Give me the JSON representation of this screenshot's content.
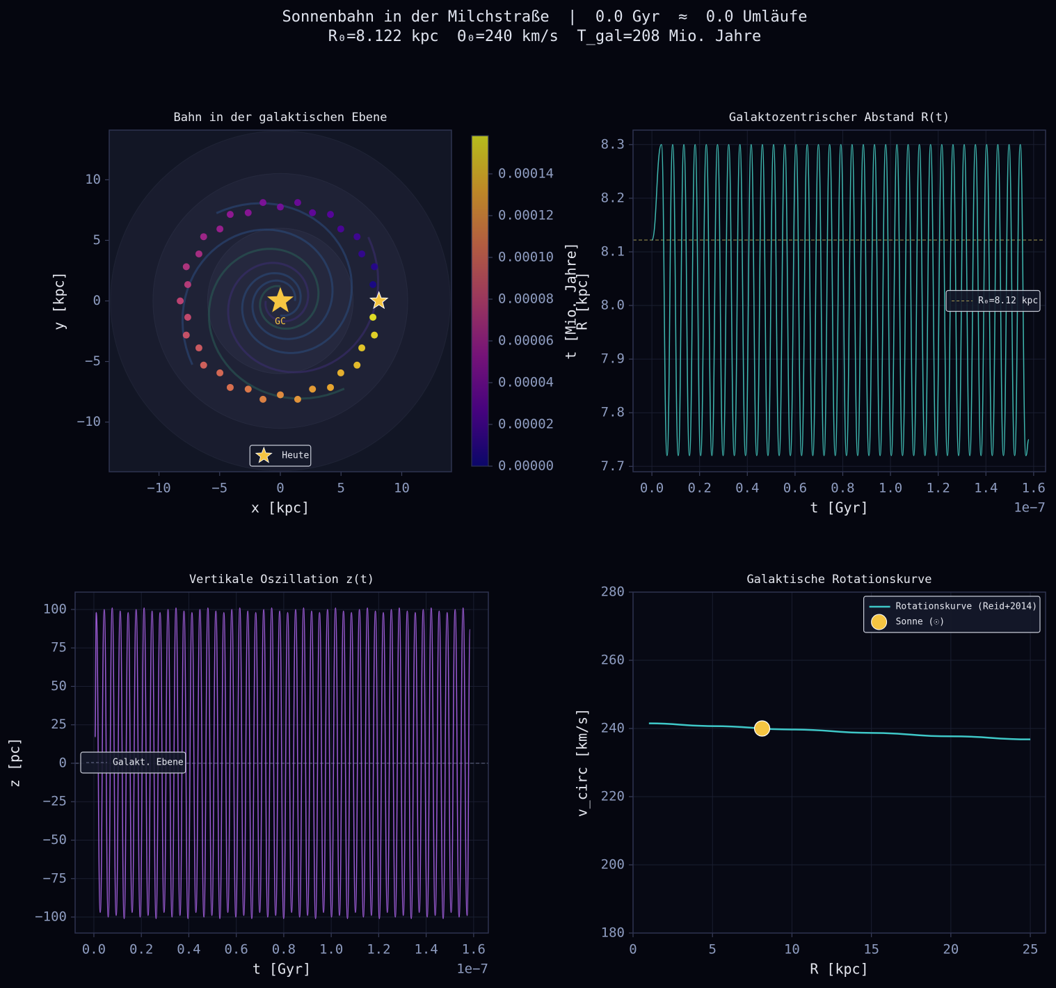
{
  "figure": {
    "title": "Sonnenbahn in der Milchstraße  |  0.0 Gyr  ≈  0.0 Umläufe",
    "subtitle": "R₀=8.122 kpc  Θ₀=240 km/s  T_gal=208 Mio. Jahre"
  },
  "chart_data": [
    {
      "type": "scatter",
      "title": "Bahn in der galaktischen Ebene",
      "xlabel": "x [kpc]",
      "ylabel": "y [kpc]",
      "xlim": [
        -14.1,
        14.1
      ],
      "ylim": [
        -14.1,
        14.1
      ],
      "xticks": [
        {
          "value": -10,
          "label": "−10"
        },
        {
          "value": -5,
          "label": "−5"
        },
        0,
        5,
        10
      ],
      "yticks": [
        {
          "value": -10,
          "label": "−10"
        },
        {
          "value": -5,
          "label": "−5"
        },
        0,
        5,
        10
      ],
      "grid": false,
      "series": [
        {
          "x": [
            8.25,
            7.63,
            7.75,
            6.71,
            6.32,
            4.98,
            4.13,
            2.65,
            1.43,
            0,
            -1.43,
            -2.65,
            -4.13,
            -4.98,
            -6.32,
            -6.71,
            -7.75,
            -7.63,
            -8.25,
            -7.63,
            -7.75,
            -6.71,
            -6.32,
            -4.98,
            -4.13,
            -2.65,
            -1.43,
            0,
            1.43,
            2.65,
            4.13,
            4.98,
            6.32,
            6.71,
            7.75,
            7.63
          ],
          "values": [
            0,
            1.35,
            2.82,
            3.88,
            5.3,
            5.94,
            7.14,
            7.28,
            8.12,
            7.75,
            8.12,
            7.28,
            7.14,
            5.94,
            5.3,
            3.88,
            2.82,
            1.35,
            0,
            -1.35,
            -2.82,
            -3.88,
            -5.3,
            -5.94,
            -7.14,
            -7.28,
            -8.12,
            -7.75,
            -8.12,
            -7.28,
            -7.14,
            -5.94,
            -5.3,
            -3.88,
            -2.82,
            -1.35
          ],
          "c": [
            0,
            4.4e-06,
            8.8e-06,
            1.32e-05,
            1.76e-05,
            2.2e-05,
            2.64e-05,
            3.08e-05,
            3.52e-05,
            3.96e-05,
            4.4e-05,
            4.84e-05,
            5.28e-05,
            5.72e-05,
            6.16e-05,
            6.6e-05,
            7.04e-05,
            7.48e-05,
            7.92e-05,
            8.36e-05,
            8.8e-05,
            9.24e-05,
            9.68e-05,
            0.0001012,
            0.0001056,
            0.00011,
            0.0001144,
            0.0001188,
            0.0001232,
            0.0001276,
            0.000132,
            0.0001364,
            0.0001408,
            0.0001452,
            0.0001496,
            0.000154
          ]
        }
      ],
      "colorbar": {
        "cmap": "plasma",
        "clim": [
          0,
          0.0001583
        ],
        "ticks": [
          {
            "value": 0,
            "label": "0.00000"
          },
          {
            "value": 2e-05,
            "label": "0.00002"
          },
          {
            "value": 4e-05,
            "label": "0.00004"
          },
          {
            "value": 6e-05,
            "label": "0.00006"
          },
          {
            "value": 8e-05,
            "label": "0.00008"
          },
          {
            "value": 0.0001,
            "label": "0.00010"
          },
          {
            "value": 0.00012,
            "label": "0.00012"
          },
          {
            "value": 0.00014,
            "label": "0.00014"
          }
        ]
      },
      "markers": [
        {
          "name": "Heute",
          "x": 8.122,
          "y": 0,
          "color": "#f5c542"
        }
      ],
      "annotations": [
        {
          "text": "GC",
          "x": 0,
          "y": 0,
          "color": "#f5c542"
        }
      ],
      "legend": "lower center"
    },
    {
      "type": "line",
      "title": "Galaktozentrischer Abstand R(t)",
      "xlabel": "t [Gyr]",
      "ylabel": "R  [kpc]",
      "ylabel_overlay": "t [Mio. Jahre]",
      "x_offset_label": "1e−7",
      "xlim": [
        -7.9e-09,
        1.65e-07
      ],
      "ylim": [
        7.69,
        8.327
      ],
      "xticks": [
        {
          "value": 0,
          "label": "0.0"
        },
        {
          "value": 2e-08,
          "label": "0.2"
        },
        {
          "value": 4e-08,
          "label": "0.4"
        },
        {
          "value": 6e-08,
          "label": "0.6"
        },
        {
          "value": 8e-08,
          "label": "0.8"
        },
        {
          "value": 1e-07,
          "label": "1.0"
        },
        {
          "value": 1.2e-07,
          "label": "1.2"
        },
        {
          "value": 1.4e-07,
          "label": "1.4"
        },
        {
          "value": 1.6e-07,
          "label": "1.6"
        }
      ],
      "yticks": [
        7.7,
        7.8,
        7.9,
        {
          "value": 8,
          "label": "8.0"
        },
        8.1,
        8.2,
        8.3
      ],
      "grid": true,
      "series": [
        {
          "color": "#3fb8b0",
          "x": [
            0,
            4e-09,
            6.35e-09,
            8.7e-09,
            1.105e-08,
            1.34e-08,
            1.575e-08,
            1.81e-08,
            2.045e-08,
            2.28e-08,
            2.515e-08,
            2.75e-08,
            2.985e-08,
            3.22e-08,
            3.455e-08,
            3.69e-08,
            3.925e-08,
            4.16e-08,
            4.395e-08,
            4.63e-08,
            4.865e-08,
            5.1e-08,
            5.335e-08,
            5.57e-08,
            5.805e-08,
            6.04e-08,
            6.275e-08,
            6.51e-08,
            6.745e-08,
            6.98e-08,
            7.215e-08,
            7.45e-08,
            7.685e-08,
            7.92e-08,
            8.155e-08,
            8.39e-08,
            8.625e-08,
            8.86e-08,
            9.095e-08,
            9.33e-08,
            9.565e-08,
            9.8e-08,
            1.0035e-07,
            1.027e-07,
            1.0505e-07,
            1.074e-07,
            1.0975e-07,
            1.121e-07,
            1.1445e-07,
            1.168e-07,
            1.1915e-07,
            1.215e-07,
            1.2385e-07,
            1.262e-07,
            1.2855e-07,
            1.309e-07,
            1.3325e-07,
            1.356e-07,
            1.3795e-07,
            1.403e-07,
            1.4265e-07,
            1.45e-07,
            1.4735e-07,
            1.497e-07,
            1.5205e-07,
            1.544e-07,
            1.5675e-07,
            1.58e-07
          ],
          "values": [
            8.122,
            8.3,
            7.72,
            8.3,
            7.72,
            8.3,
            7.72,
            8.3,
            7.72,
            8.3,
            7.72,
            8.3,
            7.72,
            8.3,
            7.72,
            8.3,
            7.72,
            8.3,
            7.72,
            8.3,
            7.72,
            8.3,
            7.72,
            8.3,
            7.72,
            8.3,
            7.72,
            8.3,
            7.72,
            8.3,
            7.72,
            8.3,
            7.72,
            8.3,
            7.72,
            8.3,
            7.72,
            8.3,
            7.72,
            8.3,
            7.72,
            8.3,
            7.72,
            8.3,
            7.72,
            8.3,
            7.72,
            8.3,
            7.72,
            8.3,
            7.72,
            8.3,
            7.72,
            8.3,
            7.72,
            8.3,
            7.72,
            8.3,
            7.72,
            8.3,
            7.72,
            8.3,
            7.72,
            8.3,
            7.72,
            8.3,
            7.72,
            7.75
          ]
        }
      ],
      "hlines": [
        {
          "name": "R₀=8.12 kpc",
          "value": 8.122,
          "color": "#a69a52"
        }
      ],
      "legend": "center right"
    },
    {
      "type": "line",
      "title": "Vertikale Oszillation z(t)",
      "xlabel": "t [Gyr]",
      "ylabel": "z  [pc]",
      "x_offset_label": "1e−7",
      "xlim": [
        -7.9e-09,
        1.662e-07
      ],
      "ylim": [
        -110.4,
        111.3
      ],
      "xticks": [
        {
          "value": 0,
          "label": "0.0"
        },
        {
          "value": 2e-08,
          "label": "0.2"
        },
        {
          "value": 4e-08,
          "label": "0.4"
        },
        {
          "value": 6e-08,
          "label": "0.6"
        },
        {
          "value": 8e-08,
          "label": "0.8"
        },
        {
          "value": 1e-07,
          "label": "1.0"
        },
        {
          "value": 1.2e-07,
          "label": "1.2"
        },
        {
          "value": 1.4e-07,
          "label": "1.4"
        },
        {
          "value": 1.6e-07,
          "label": "1.6"
        }
      ],
      "yticks": [
        {
          "value": -100,
          "label": "−100"
        },
        {
          "value": -75,
          "label": "−75"
        },
        {
          "value": -50,
          "label": "−50"
        },
        {
          "value": -25,
          "label": "−25"
        },
        0,
        25,
        50,
        75,
        100
      ],
      "grid": true,
      "series": [
        {
          "color": "#9b5bd4",
          "x": [
            5e-10,
            1e-09,
            2.68e-09,
            4.36e-09,
            6.04e-09,
            7.72e-09,
            9.4e-09,
            1.108e-08,
            1.276e-08,
            1.444e-08,
            1.612e-08,
            1.78e-08,
            1.948e-08,
            2.116e-08,
            2.284e-08,
            2.452e-08,
            2.62e-08,
            2.788e-08,
            2.956e-08,
            3.124e-08,
            3.292e-08,
            3.46e-08,
            3.628e-08,
            3.796e-08,
            3.964e-08,
            4.132e-08,
            4.3e-08,
            4.468e-08,
            4.636e-08,
            4.804e-08,
            4.972e-08,
            5.14e-08,
            5.308e-08,
            5.476e-08,
            5.644e-08,
            5.812e-08,
            5.98e-08,
            6.148e-08,
            6.316e-08,
            6.484e-08,
            6.652e-08,
            6.82e-08,
            6.988e-08,
            7.156e-08,
            7.324e-08,
            7.492e-08,
            7.66e-08,
            7.828e-08,
            7.996e-08,
            8.164e-08,
            8.332e-08,
            8.5e-08,
            8.668e-08,
            8.836e-08,
            9.004e-08,
            9.172e-08,
            9.34e-08,
            9.508e-08,
            9.676e-08,
            9.844e-08,
            1.0012e-07,
            1.018e-07,
            1.0348e-07,
            1.0516e-07,
            1.0684e-07,
            1.0852e-07,
            1.102e-07,
            1.1188e-07,
            1.1356e-07,
            1.1524e-07,
            1.1692e-07,
            1.186e-07,
            1.2028e-07,
            1.2196e-07,
            1.2364e-07,
            1.2532e-07,
            1.27e-07,
            1.2868e-07,
            1.3036e-07,
            1.3204e-07,
            1.3372e-07,
            1.354e-07,
            1.3708e-07,
            1.3876e-07,
            1.4044e-07,
            1.4212e-07,
            1.438e-07,
            1.4548e-07,
            1.4716e-07,
            1.4884e-07,
            1.5052e-07,
            1.522e-07,
            1.5388e-07,
            1.5556e-07,
            1.5724e-07,
            1.585e-07
          ],
          "values": [
            17,
            98,
            -97,
            100,
            -100,
            101,
            -99,
            99,
            -101,
            98,
            -97,
            100,
            -100,
            101,
            -99,
            99,
            -101,
            98,
            -97,
            100,
            -100,
            101,
            -99,
            99,
            -101,
            98,
            -97,
            100,
            -100,
            101,
            -99,
            99,
            -101,
            98,
            -97,
            100,
            -100,
            101,
            -99,
            99,
            -101,
            98,
            -97,
            100,
            -100,
            101,
            -99,
            99,
            -101,
            98,
            -97,
            100,
            -100,
            101,
            -99,
            99,
            -101,
            98,
            -97,
            100,
            -100,
            101,
            -99,
            99,
            -101,
            98,
            -97,
            100,
            -100,
            101,
            -99,
            99,
            -101,
            98,
            -97,
            100,
            -100,
            101,
            -99,
            99,
            -101,
            98,
            -97,
            100,
            -100,
            101,
            -99,
            99,
            -101,
            98,
            -97,
            100,
            -100,
            101,
            -99,
            87
          ]
        }
      ],
      "hlines": [
        {
          "name": "Galakt. Ebene",
          "value": 0,
          "color": "#6a6f8e"
        }
      ],
      "legend": "center left"
    },
    {
      "type": "line",
      "title": "Galaktische Rotationskurve",
      "xlabel": "R  [kpc]",
      "ylabel": "v_circ  [km/s]",
      "xlim": [
        0,
        25.96
      ],
      "ylim": [
        180,
        280
      ],
      "xticks": [
        0,
        5,
        10,
        15,
        20,
        25
      ],
      "yticks": [
        180,
        200,
        220,
        240,
        260,
        280
      ],
      "grid": true,
      "series": [
        {
          "name": "Rotationskurve (Reid+2014)",
          "type": "line",
          "color": "#3fc8c8",
          "x": [
            1,
            5,
            10,
            15,
            20,
            25
          ],
          "values": [
            241.5,
            240.7,
            239.7,
            238.7,
            237.7,
            236.8
          ]
        },
        {
          "name": "Sonne (☉)",
          "type": "scatter",
          "color": "#f5c542",
          "x": [
            8.122
          ],
          "values": [
            240
          ]
        }
      ],
      "legend": "upper right"
    }
  ]
}
